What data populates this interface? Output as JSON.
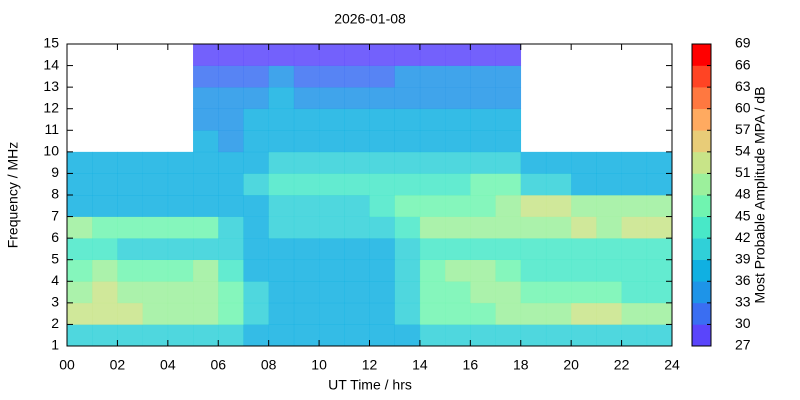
{
  "chart_data": {
    "type": "heatmap",
    "title": "2026-01-08",
    "xlabel": "UT Time / hrs",
    "ylabel": "Frequency / MHz",
    "colorbar_label": "Most Probable Amplitude MPA / dB",
    "xlim": [
      0,
      24
    ],
    "xticks": [
      {
        "value": 0,
        "label": "00"
      },
      {
        "value": 2,
        "label": "02"
      },
      {
        "value": 4,
        "label": "04"
      },
      {
        "value": 6,
        "label": "06"
      },
      {
        "value": 8,
        "label": "08"
      },
      10,
      12,
      14,
      16,
      18,
      20,
      22,
      24
    ],
    "ylim": [
      1,
      15
    ],
    "yticks": [
      1,
      2,
      3,
      4,
      5,
      6,
      7,
      8,
      9,
      10,
      11,
      12,
      13,
      14,
      15
    ],
    "clim": [
      27,
      69
    ],
    "cticks": [
      27,
      30,
      33,
      36,
      39,
      42,
      45,
      48,
      51,
      54,
      57,
      60,
      63,
      66,
      69
    ],
    "colors": [
      "#8000ff",
      "#5a45fb",
      "#3a6ef2",
      "#1e94e8",
      "#10b0e2",
      "#30d0d8",
      "#48e8c8",
      "#70f4b0",
      "#9cf09c",
      "#c8e488",
      "#e8cc78",
      "#ffaa60",
      "#ff7840",
      "#ff4424",
      "#ff0000"
    ],
    "x_bins": [
      0,
      1,
      2,
      3,
      4,
      5,
      6,
      7,
      8,
      9,
      10,
      11,
      12,
      13,
      14,
      15,
      16,
      17,
      18,
      19,
      20,
      21,
      22,
      23,
      24
    ],
    "y_bins": [
      1,
      2,
      3,
      4,
      5,
      6,
      7,
      8,
      9,
      10,
      11,
      12,
      13,
      14,
      15
    ],
    "z": [
      [
        42,
        42,
        42,
        42,
        42,
        42,
        42,
        39,
        39,
        39,
        39,
        39,
        39,
        39,
        42,
        42,
        42,
        42,
        42,
        42,
        42,
        42,
        42,
        42
      ],
      [
        54,
        54,
        54,
        51,
        51,
        51,
        48,
        42,
        39,
        39,
        39,
        39,
        39,
        42,
        48,
        48,
        48,
        51,
        51,
        51,
        54,
        54,
        51,
        51
      ],
      [
        51,
        54,
        51,
        51,
        51,
        51,
        48,
        42,
        39,
        39,
        39,
        39,
        39,
        42,
        48,
        48,
        51,
        51,
        48,
        48,
        48,
        48,
        45,
        45
      ],
      [
        48,
        51,
        48,
        48,
        48,
        51,
        45,
        39,
        39,
        39,
        39,
        39,
        39,
        42,
        48,
        51,
        51,
        48,
        45,
        45,
        45,
        45,
        45,
        45
      ],
      [
        45,
        45,
        42,
        42,
        42,
        42,
        42,
        39,
        39,
        39,
        39,
        39,
        39,
        42,
        45,
        45,
        45,
        45,
        45,
        45,
        45,
        45,
        45,
        45
      ],
      [
        51,
        48,
        48,
        48,
        48,
        48,
        42,
        39,
        42,
        42,
        42,
        42,
        42,
        45,
        51,
        51,
        51,
        51,
        51,
        51,
        54,
        51,
        54,
        54
      ],
      [
        39,
        39,
        39,
        39,
        39,
        39,
        39,
        39,
        42,
        42,
        42,
        42,
        45,
        48,
        48,
        48,
        48,
        51,
        54,
        54,
        51,
        51,
        51,
        51
      ],
      [
        39,
        39,
        39,
        39,
        39,
        39,
        39,
        42,
        45,
        45,
        45,
        45,
        45,
        45,
        45,
        45,
        48,
        48,
        42,
        42,
        39,
        39,
        39,
        39
      ],
      [
        39,
        39,
        39,
        39,
        39,
        39,
        39,
        39,
        42,
        42,
        42,
        42,
        42,
        42,
        42,
        42,
        42,
        42,
        39,
        39,
        39,
        39,
        39,
        39
      ],
      [
        null,
        null,
        null,
        null,
        null,
        39,
        36,
        39,
        39,
        39,
        39,
        39,
        39,
        39,
        39,
        39,
        39,
        39,
        null,
        null,
        null,
        null,
        null,
        null
      ],
      [
        null,
        null,
        null,
        null,
        null,
        36,
        36,
        39,
        39,
        39,
        39,
        39,
        39,
        39,
        39,
        39,
        39,
        39,
        null,
        null,
        null,
        null,
        null,
        null
      ],
      [
        null,
        null,
        null,
        null,
        null,
        36,
        36,
        36,
        39,
        36,
        36,
        36,
        36,
        36,
        36,
        36,
        36,
        36,
        null,
        null,
        null,
        null,
        null,
        null
      ],
      [
        null,
        null,
        null,
        null,
        null,
        33,
        33,
        33,
        36,
        33,
        33,
        33,
        33,
        36,
        36,
        36,
        36,
        36,
        null,
        null,
        null,
        null,
        null,
        null
      ],
      [
        null,
        null,
        null,
        null,
        null,
        30,
        30,
        30,
        30,
        30,
        30,
        30,
        30,
        30,
        30,
        30,
        30,
        30,
        null,
        null,
        null,
        null,
        null,
        null
      ]
    ]
  }
}
